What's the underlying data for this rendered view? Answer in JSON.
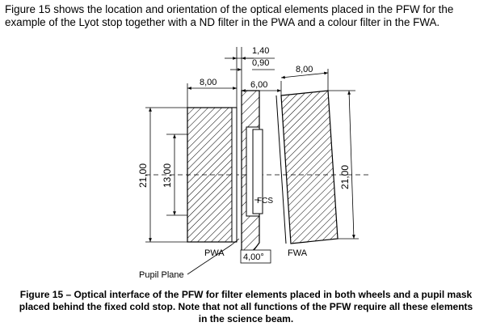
{
  "intro": {
    "line1": "Figure 15 shows the location and orientation of the optical elements placed in the PFW for the",
    "line2": "example of the Lyot stop together with a ND filter in the PWA and a colour filter in the FWA."
  },
  "drawing": {
    "dim_top_1": "1,40",
    "dim_top_2": "0,90",
    "dim_pwa_width": "8,00",
    "dim_gap": "6,00",
    "dim_fwa_width": "8,00",
    "dim_left_height": "21,00",
    "dim_inner_height": "13,00",
    "dim_right_height": "21,00",
    "label_fcs": "FCS",
    "label_pwa": "PWA",
    "label_fwa": "FWA",
    "dim_angle": "4,00°",
    "label_pupil_plane": "Pupil Plane"
  },
  "caption": {
    "line1": "Figure 15 – Optical interface of the PFW for filter elements placed in both wheels and a pupil mask",
    "line2": "placed behind the fixed cold stop. Note that not all functions of the PFW require all these elements",
    "line3": "in the science beam."
  }
}
